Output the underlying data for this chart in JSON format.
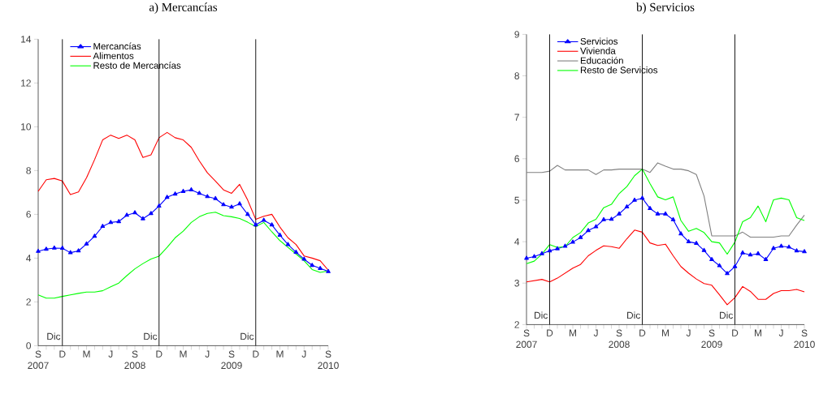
{
  "chart_data": [
    {
      "type": "line",
      "title": "a) Mercancías",
      "legend": "top left",
      "x": [
        "2007-09",
        "2007-10",
        "2007-11",
        "2007-12",
        "2008-01",
        "2008-02",
        "2008-03",
        "2008-04",
        "2008-05",
        "2008-06",
        "2008-07",
        "2008-08",
        "2008-09",
        "2008-10",
        "2008-11",
        "2008-12",
        "2009-01",
        "2009-02",
        "2009-03",
        "2009-04",
        "2009-05",
        "2009-06",
        "2009-07",
        "2009-08",
        "2009-09",
        "2009-10",
        "2009-11",
        "2009-12",
        "2010-01",
        "2010-02",
        "2010-03",
        "2010-04",
        "2010-05",
        "2010-06",
        "2010-07",
        "2010-08",
        "2010-09"
      ],
      "xlim": [
        "2007-09",
        "2010-09"
      ],
      "xticks": [
        {
          "value": "2007-09",
          "label": "S 2007"
        },
        {
          "value": "2007-12",
          "label": "D"
        },
        {
          "value": "2008-03",
          "label": "M"
        },
        {
          "value": "2008-06",
          "label": "J"
        },
        {
          "value": "2008-09",
          "label": "S 2008"
        },
        {
          "value": "2008-12",
          "label": "D"
        },
        {
          "value": "2009-03",
          "label": "M"
        },
        {
          "value": "2009-06",
          "label": "J"
        },
        {
          "value": "2009-09",
          "label": "S 2009"
        },
        {
          "value": "2009-12",
          "label": "D"
        },
        {
          "value": "2010-03",
          "label": "M"
        },
        {
          "value": "2010-06",
          "label": "J"
        },
        {
          "value": "2010-09",
          "label": "S 2010"
        }
      ],
      "ylim": [
        0,
        14
      ],
      "yticks": [
        0,
        2,
        4,
        6,
        8,
        10,
        12,
        14
      ],
      "ref_lines": [
        {
          "axis": "x",
          "value": "2007-12",
          "label": "Dic",
          "color": "#000000"
        },
        {
          "axis": "x",
          "value": "2008-12",
          "label": "Dic",
          "color": "#000000"
        },
        {
          "axis": "x",
          "value": "2009-12",
          "label": "Dic",
          "color": "#000000"
        }
      ],
      "series": [
        {
          "name": "Mercancías",
          "color": "#0000ff",
          "marker": "triangle",
          "values": [
            4.31,
            4.41,
            4.46,
            4.45,
            4.25,
            4.33,
            4.65,
            5.0,
            5.45,
            5.63,
            5.67,
            5.96,
            6.07,
            5.8,
            6.04,
            6.38,
            6.78,
            6.93,
            7.05,
            7.12,
            6.96,
            6.81,
            6.72,
            6.44,
            6.33,
            6.48,
            6.0,
            5.52,
            5.73,
            5.52,
            5.05,
            4.62,
            4.27,
            3.95,
            3.67,
            3.53,
            3.39
          ]
        },
        {
          "name": "Alimentos",
          "color": "#ff0000",
          "values": [
            7.05,
            7.58,
            7.64,
            7.52,
            6.9,
            7.02,
            7.67,
            8.5,
            9.4,
            9.62,
            9.47,
            9.62,
            9.4,
            8.6,
            8.72,
            9.5,
            9.74,
            9.5,
            9.4,
            9.06,
            8.44,
            7.9,
            7.52,
            7.12,
            6.96,
            7.37,
            6.65,
            5.77,
            5.91,
            6.0,
            5.42,
            4.93,
            4.62,
            4.1,
            4.0,
            3.88,
            3.45
          ]
        },
        {
          "name": "Resto de Mercancías",
          "color": "#00ff00",
          "values": [
            2.32,
            2.17,
            2.17,
            2.25,
            2.32,
            2.39,
            2.45,
            2.45,
            2.51,
            2.69,
            2.86,
            3.2,
            3.51,
            3.75,
            3.96,
            4.09,
            4.49,
            4.93,
            5.23,
            5.63,
            5.89,
            6.04,
            6.1,
            5.94,
            5.89,
            5.81,
            5.64,
            5.44,
            5.63,
            5.2,
            4.8,
            4.49,
            4.19,
            3.88,
            3.48,
            3.35,
            3.41
          ]
        }
      ]
    },
    {
      "type": "line",
      "title": "b) Servicios",
      "legend": "top left",
      "x": [
        "2007-09",
        "2007-10",
        "2007-11",
        "2007-12",
        "2008-01",
        "2008-02",
        "2008-03",
        "2008-04",
        "2008-05",
        "2008-06",
        "2008-07",
        "2008-08",
        "2008-09",
        "2008-10",
        "2008-11",
        "2008-12",
        "2009-01",
        "2009-02",
        "2009-03",
        "2009-04",
        "2009-05",
        "2009-06",
        "2009-07",
        "2009-08",
        "2009-09",
        "2009-10",
        "2009-11",
        "2009-12",
        "2010-01",
        "2010-02",
        "2010-03",
        "2010-04",
        "2010-05",
        "2010-06",
        "2010-07",
        "2010-08",
        "2010-09"
      ],
      "xlim": [
        "2007-09",
        "2010-09"
      ],
      "xticks": [
        {
          "value": "2007-09",
          "label": "S 2007"
        },
        {
          "value": "2007-12",
          "label": "D"
        },
        {
          "value": "2008-03",
          "label": "M"
        },
        {
          "value": "2008-06",
          "label": "J"
        },
        {
          "value": "2008-09",
          "label": "S 2008"
        },
        {
          "value": "2008-12",
          "label": "D"
        },
        {
          "value": "2009-03",
          "label": "M"
        },
        {
          "value": "2009-06",
          "label": "J"
        },
        {
          "value": "2009-09",
          "label": "S 2009"
        },
        {
          "value": "2009-12",
          "label": "D"
        },
        {
          "value": "2010-03",
          "label": "M"
        },
        {
          "value": "2010-06",
          "label": "J"
        },
        {
          "value": "2010-09",
          "label": "S 2010"
        }
      ],
      "ylim": [
        2,
        9
      ],
      "yticks": [
        2,
        3,
        4,
        5,
        6,
        7,
        8,
        9
      ],
      "ref_lines": [
        {
          "axis": "x",
          "value": "2007-12",
          "label": "Dic",
          "color": "#000000"
        },
        {
          "axis": "x",
          "value": "2008-12",
          "label": "Dic",
          "color": "#000000"
        },
        {
          "axis": "x",
          "value": "2009-12",
          "label": "Dic",
          "color": "#000000"
        }
      ],
      "series": [
        {
          "name": "Servicios",
          "color": "#0000ff",
          "marker": "triangle",
          "values": [
            3.6,
            3.64,
            3.71,
            3.78,
            3.83,
            3.89,
            3.99,
            4.1,
            4.27,
            4.36,
            4.53,
            4.54,
            4.67,
            4.84,
            5.0,
            5.05,
            4.8,
            4.67,
            4.67,
            4.53,
            4.19,
            4.0,
            3.96,
            3.79,
            3.57,
            3.42,
            3.23,
            3.4,
            3.73,
            3.68,
            3.71,
            3.57,
            3.84,
            3.89,
            3.87,
            3.78,
            3.76
          ]
        },
        {
          "name": "Vivienda",
          "color": "#ff0000",
          "values": [
            3.03,
            3.06,
            3.09,
            3.03,
            3.12,
            3.24,
            3.36,
            3.45,
            3.66,
            3.79,
            3.9,
            3.88,
            3.84,
            4.07,
            4.28,
            4.23,
            3.97,
            3.91,
            3.94,
            3.66,
            3.4,
            3.24,
            3.1,
            2.99,
            2.95,
            2.72,
            2.48,
            2.65,
            2.92,
            2.8,
            2.61,
            2.61,
            2.75,
            2.82,
            2.82,
            2.85,
            2.79
          ]
        },
        {
          "name": "Educación",
          "color": "#808080",
          "values": [
            5.67,
            5.67,
            5.67,
            5.7,
            5.84,
            5.73,
            5.73,
            5.73,
            5.73,
            5.62,
            5.73,
            5.73,
            5.75,
            5.75,
            5.75,
            5.75,
            5.67,
            5.9,
            5.82,
            5.75,
            5.75,
            5.71,
            5.62,
            5.1,
            4.14,
            4.14,
            4.14,
            4.14,
            4.23,
            4.11,
            4.11,
            4.11,
            4.11,
            4.14,
            4.14,
            4.4,
            4.64
          ]
        },
        {
          "name": "Resto de Servicios",
          "color": "#00ff00",
          "values": [
            3.47,
            3.53,
            3.7,
            3.93,
            3.86,
            3.88,
            4.1,
            4.22,
            4.45,
            4.54,
            4.82,
            4.9,
            5.16,
            5.33,
            5.59,
            5.75,
            5.4,
            5.08,
            5.01,
            5.08,
            4.51,
            4.25,
            4.32,
            4.22,
            4.0,
            3.97,
            3.7,
            3.99,
            4.48,
            4.58,
            4.86,
            4.48,
            5.01,
            5.05,
            5.01,
            4.58,
            4.51
          ]
        }
      ]
    }
  ]
}
